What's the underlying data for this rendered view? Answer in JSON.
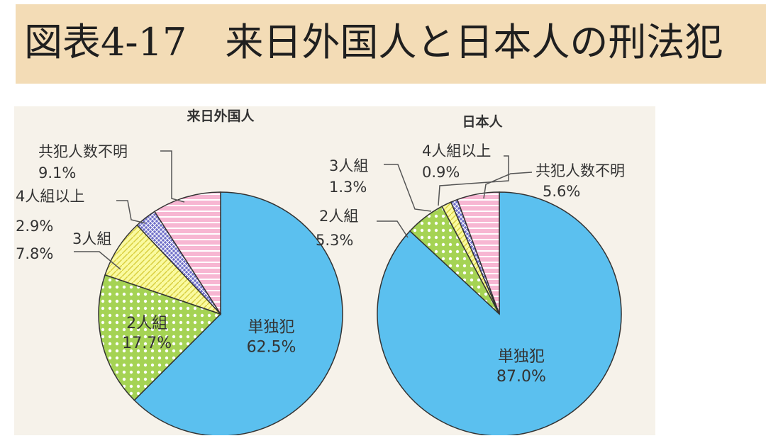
{
  "title": "図表4-17　来日外国人と日本人の刑法犯",
  "colors": {
    "single": "#5bc0ef",
    "two": "#a5d354",
    "three": "#fafaa0",
    "four_plus": "#6f6fc8",
    "unknown": "#f7b6d2",
    "background": "#f6f2ea",
    "title_bg": "#f3dcb6"
  },
  "chart_data": [
    {
      "type": "pie",
      "title": "来日外国人",
      "series": [
        {
          "name": "単独犯",
          "value": 62.5,
          "label": "62.5%"
        },
        {
          "name": "2人組",
          "value": 17.7,
          "label": "17.7%"
        },
        {
          "name": "3人組",
          "value": 7.8,
          "label": "7.8%"
        },
        {
          "name": "4人組以上",
          "value": 2.9,
          "label": "2.9%"
        },
        {
          "name": "共犯人数不明",
          "value": 9.1,
          "label": "9.1%"
        }
      ]
    },
    {
      "type": "pie",
      "title": "日本人",
      "series": [
        {
          "name": "単独犯",
          "value": 87.0,
          "label": "87.0%"
        },
        {
          "name": "2人組",
          "value": 5.3,
          "label": "5.3%"
        },
        {
          "name": "3人組",
          "value": 1.3,
          "label": "1.3%"
        },
        {
          "name": "4人組以上",
          "value": 0.9,
          "label": "0.9%"
        },
        {
          "name": "共犯人数不明",
          "value": 5.6,
          "label": "5.6%"
        }
      ]
    }
  ]
}
